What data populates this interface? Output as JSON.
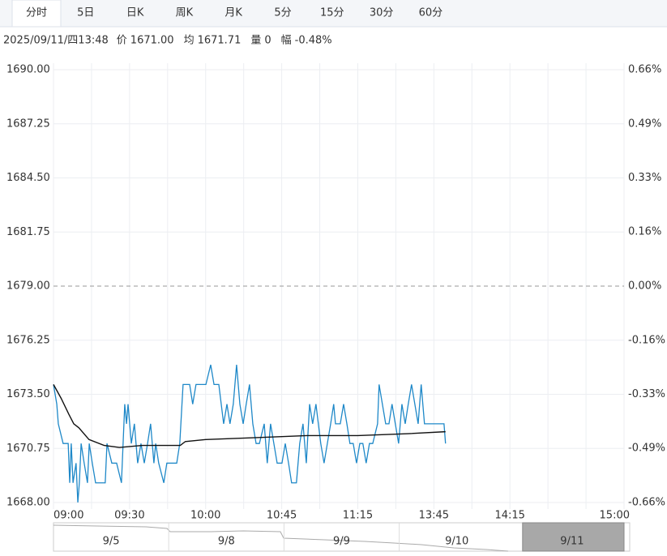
{
  "tabs": [
    "分时",
    "5日",
    "日K",
    "周K",
    "月K",
    "5分",
    "15分",
    "30分",
    "60分"
  ],
  "info": {
    "datetime": "2025/09/11/四13:48",
    "items": [
      {
        "label": "价",
        "value": "1671.00"
      },
      {
        "label": "均",
        "value": "1671.71"
      },
      {
        "label": "量",
        "value": "0"
      },
      {
        "label": "幅",
        "value": "-0.48%"
      }
    ]
  },
  "chart_data": {
    "type": "line",
    "ylim": [
      1668,
      1690
    ],
    "yticks": [
      {
        "value": 1690,
        "label": "1690.00"
      },
      {
        "value": 1687.25,
        "label": "1687.25"
      },
      {
        "value": 1684.5,
        "label": "1684.50"
      },
      {
        "value": 1681.75,
        "label": "1681.75"
      },
      {
        "value": 1679,
        "label": "1679.00"
      },
      {
        "value": 1676.25,
        "label": "1676.25"
      },
      {
        "value": 1673.5,
        "label": "1673.50"
      },
      {
        "value": 1670.75,
        "label": "1670.75"
      },
      {
        "value": 1668,
        "label": "1668.00"
      }
    ],
    "y2lim": [
      -0.655,
      0.655
    ],
    "y2ticks": [
      {
        "value": 0.655,
        "label": "0.66%"
      },
      {
        "value": 0.491,
        "label": "0.49%"
      },
      {
        "value": 0.328,
        "label": "0.33%"
      },
      {
        "value": 0.164,
        "label": "0.16%"
      },
      {
        "value": 0,
        "label": "0.00%"
      },
      {
        "value": -0.164,
        "label": "-0.16%"
      },
      {
        "value": -0.328,
        "label": "-0.33%"
      },
      {
        "value": -0.491,
        "label": "-0.49%"
      },
      {
        "value": -0.655,
        "label": "-0.66%"
      }
    ],
    "xlim": [
      0,
      225
    ],
    "xticks": [
      {
        "value": 0,
        "label": "09:00"
      },
      {
        "value": 30,
        "label": "09:30"
      },
      {
        "value": 60,
        "label": "10:00"
      },
      {
        "value": 90,
        "label": "10:45"
      },
      {
        "value": 120,
        "label": "11:15"
      },
      {
        "value": 150,
        "label": "13:45"
      },
      {
        "value": 180,
        "label": "14:15"
      },
      {
        "value": 225,
        "label": "15:00"
      }
    ],
    "grid": true,
    "up_color": "#e02020",
    "down_color": "#1a9e1a",
    "series": [
      {
        "color": "#1e88c8",
        "x": [
          0,
          1.3,
          1.9,
          3.8,
          5.8,
          6.4,
          7.0,
          7.7,
          8.9,
          9.6,
          10.2,
          10.9,
          12.1,
          13.4,
          14.1,
          15.3,
          16.6,
          20.4,
          21.1,
          23.0,
          24.9,
          26.8,
          28.1,
          28.8,
          29.4,
          30.7,
          31.9,
          33.2,
          34.5,
          35.8,
          37.1,
          38.3,
          39.6,
          40.3,
          41.5,
          43.5,
          44.7,
          48.6,
          49.8,
          51.1,
          53.7,
          54.9,
          56.2,
          60.1,
          62.0,
          63.3,
          65.2,
          67.1,
          68.4,
          69.6,
          70.9,
          72.2,
          73.5,
          74.8,
          76.0,
          77.3,
          78.6,
          79.9,
          81.2,
          83.1,
          84.3,
          85.6,
          86.9,
          88.2,
          90.1,
          91.4,
          92.7,
          93.9,
          95.8,
          97.1,
          98.4,
          99.7,
          101.0,
          102.2,
          103.5,
          105.4,
          106.7,
          108.0,
          109.3,
          110.5,
          111.2,
          113.1,
          114.4,
          115.7,
          116.9,
          118.2,
          119.5,
          120.8,
          122.0,
          123.3,
          124.6,
          125.9,
          127.8,
          128.4,
          129.7,
          131.0,
          132.3,
          133.5,
          134.8,
          136.1,
          137.4,
          138.7,
          139.9,
          141.2,
          142.5,
          143.8,
          145.0,
          146.3,
          154.0,
          154.6
        ],
        "values": [
          1674,
          1673,
          1672,
          1671,
          1671,
          1669,
          1671,
          1669,
          1670,
          1668,
          1669,
          1671,
          1670,
          1669,
          1671,
          1670,
          1669,
          1669,
          1671,
          1670,
          1670,
          1669,
          1673,
          1672,
          1673,
          1671,
          1672,
          1670,
          1671,
          1670,
          1671,
          1672,
          1670,
          1671,
          1670,
          1669,
          1670,
          1670,
          1671,
          1674,
          1674,
          1673,
          1674,
          1674,
          1675,
          1674,
          1674,
          1672,
          1673,
          1672,
          1673,
          1675,
          1673,
          1672,
          1673,
          1674,
          1672,
          1671,
          1671,
          1672,
          1670,
          1672,
          1671,
          1670,
          1670,
          1671,
          1670,
          1669,
          1669,
          1671,
          1672,
          1670,
          1673,
          1672,
          1673,
          1671,
          1670,
          1671,
          1672,
          1673,
          1672,
          1672,
          1673,
          1672,
          1671,
          1671,
          1670,
          1671,
          1671,
          1670,
          1671,
          1671,
          1672,
          1674,
          1673,
          1672,
          1672,
          1673,
          1672,
          1671,
          1673,
          1672,
          1673,
          1674,
          1673,
          1672,
          1674,
          1672,
          1672,
          1671
        ]
      },
      {
        "color": "#111111",
        "x": [
          0,
          3,
          6,
          8,
          10,
          14,
          20,
          26,
          35,
          45,
          50,
          52,
          60,
          80,
          100,
          120,
          140,
          154.6
        ],
        "values": [
          1674,
          1673.3,
          1672.5,
          1672,
          1671.8,
          1671.2,
          1670.9,
          1670.8,
          1670.9,
          1670.9,
          1670.9,
          1671.1,
          1671.2,
          1671.3,
          1671.4,
          1671.4,
          1671.5,
          1671.6
        ]
      }
    ]
  },
  "navigator": {
    "dates": [
      "9/5",
      "9/8",
      "9/9",
      "9/10",
      "9/11"
    ]
  }
}
